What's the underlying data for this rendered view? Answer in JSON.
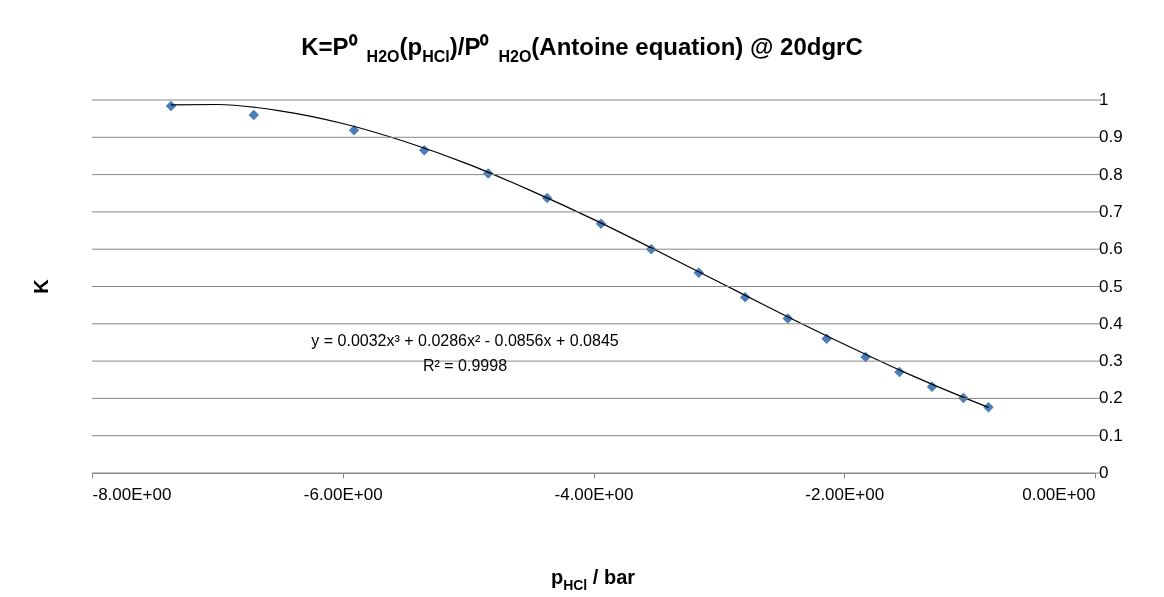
{
  "chart_data": {
    "type": "scatter",
    "title": "K=P⁰$_{H2O}$(p$_{HCl}$)/P⁰$_{H2O}$(Antoine equation) @ 20dgrC",
    "xlabel": "p$_{HCl}$ / bar",
    "ylabel": "K",
    "annotations": [
      "y = 0.0032x³ + 0.0286x² - 0.0856x + 0.0845",
      "R² = 0.9998"
    ],
    "series": [
      {
        "type": "scatter",
        "color": "#4a7ebb",
        "marker": "diamond",
        "x": [
          -7.37,
          -6.71,
          -5.91,
          -5.35,
          -4.84,
          -4.37,
          -3.94,
          -3.54,
          -3.16,
          -2.79,
          -2.45,
          -2.14,
          -1.83,
          -1.56,
          -1.3,
          -1.05,
          -0.85
        ],
        "values": [
          0.984,
          0.96,
          0.919,
          0.865,
          0.803,
          0.737,
          0.668,
          0.6,
          0.537,
          0.471,
          0.414,
          0.36,
          0.311,
          0.271,
          0.231,
          0.201,
          0.176
        ]
      },
      {
        "type": "line",
        "color": "#000000",
        "marker": "none",
        "x": [
          -7.37,
          -7,
          -6.5,
          -6,
          -5.5,
          -5,
          -4.5,
          -4,
          -3.5,
          -3,
          -2.5,
          -2,
          -1.5,
          -1,
          -0.85
        ],
        "values": [
          0.987,
          0.988,
          0.971,
          0.937,
          0.888,
          0.828,
          0.757,
          0.68,
          0.597,
          0.512,
          0.427,
          0.345,
          0.267,
          0.196,
          0.176
        ]
      }
    ],
    "xlim": [
      -8,
      0
    ],
    "xticks": [
      {
        "value": -8,
        "label": "-8.00E+00"
      },
      {
        "value": -6,
        "label": "-6.00E+00"
      },
      {
        "value": -4,
        "label": "-4.00E+00"
      },
      {
        "value": -2,
        "label": "-2.00E+00"
      },
      {
        "value": 0,
        "label": "0.00E+00"
      }
    ],
    "ylim": [
      0,
      1
    ],
    "yticks": [
      0,
      0.1,
      0.2,
      0.3,
      0.4,
      0.5,
      0.6,
      0.7,
      0.8,
      0.9,
      1
    ],
    "grid": "y"
  }
}
